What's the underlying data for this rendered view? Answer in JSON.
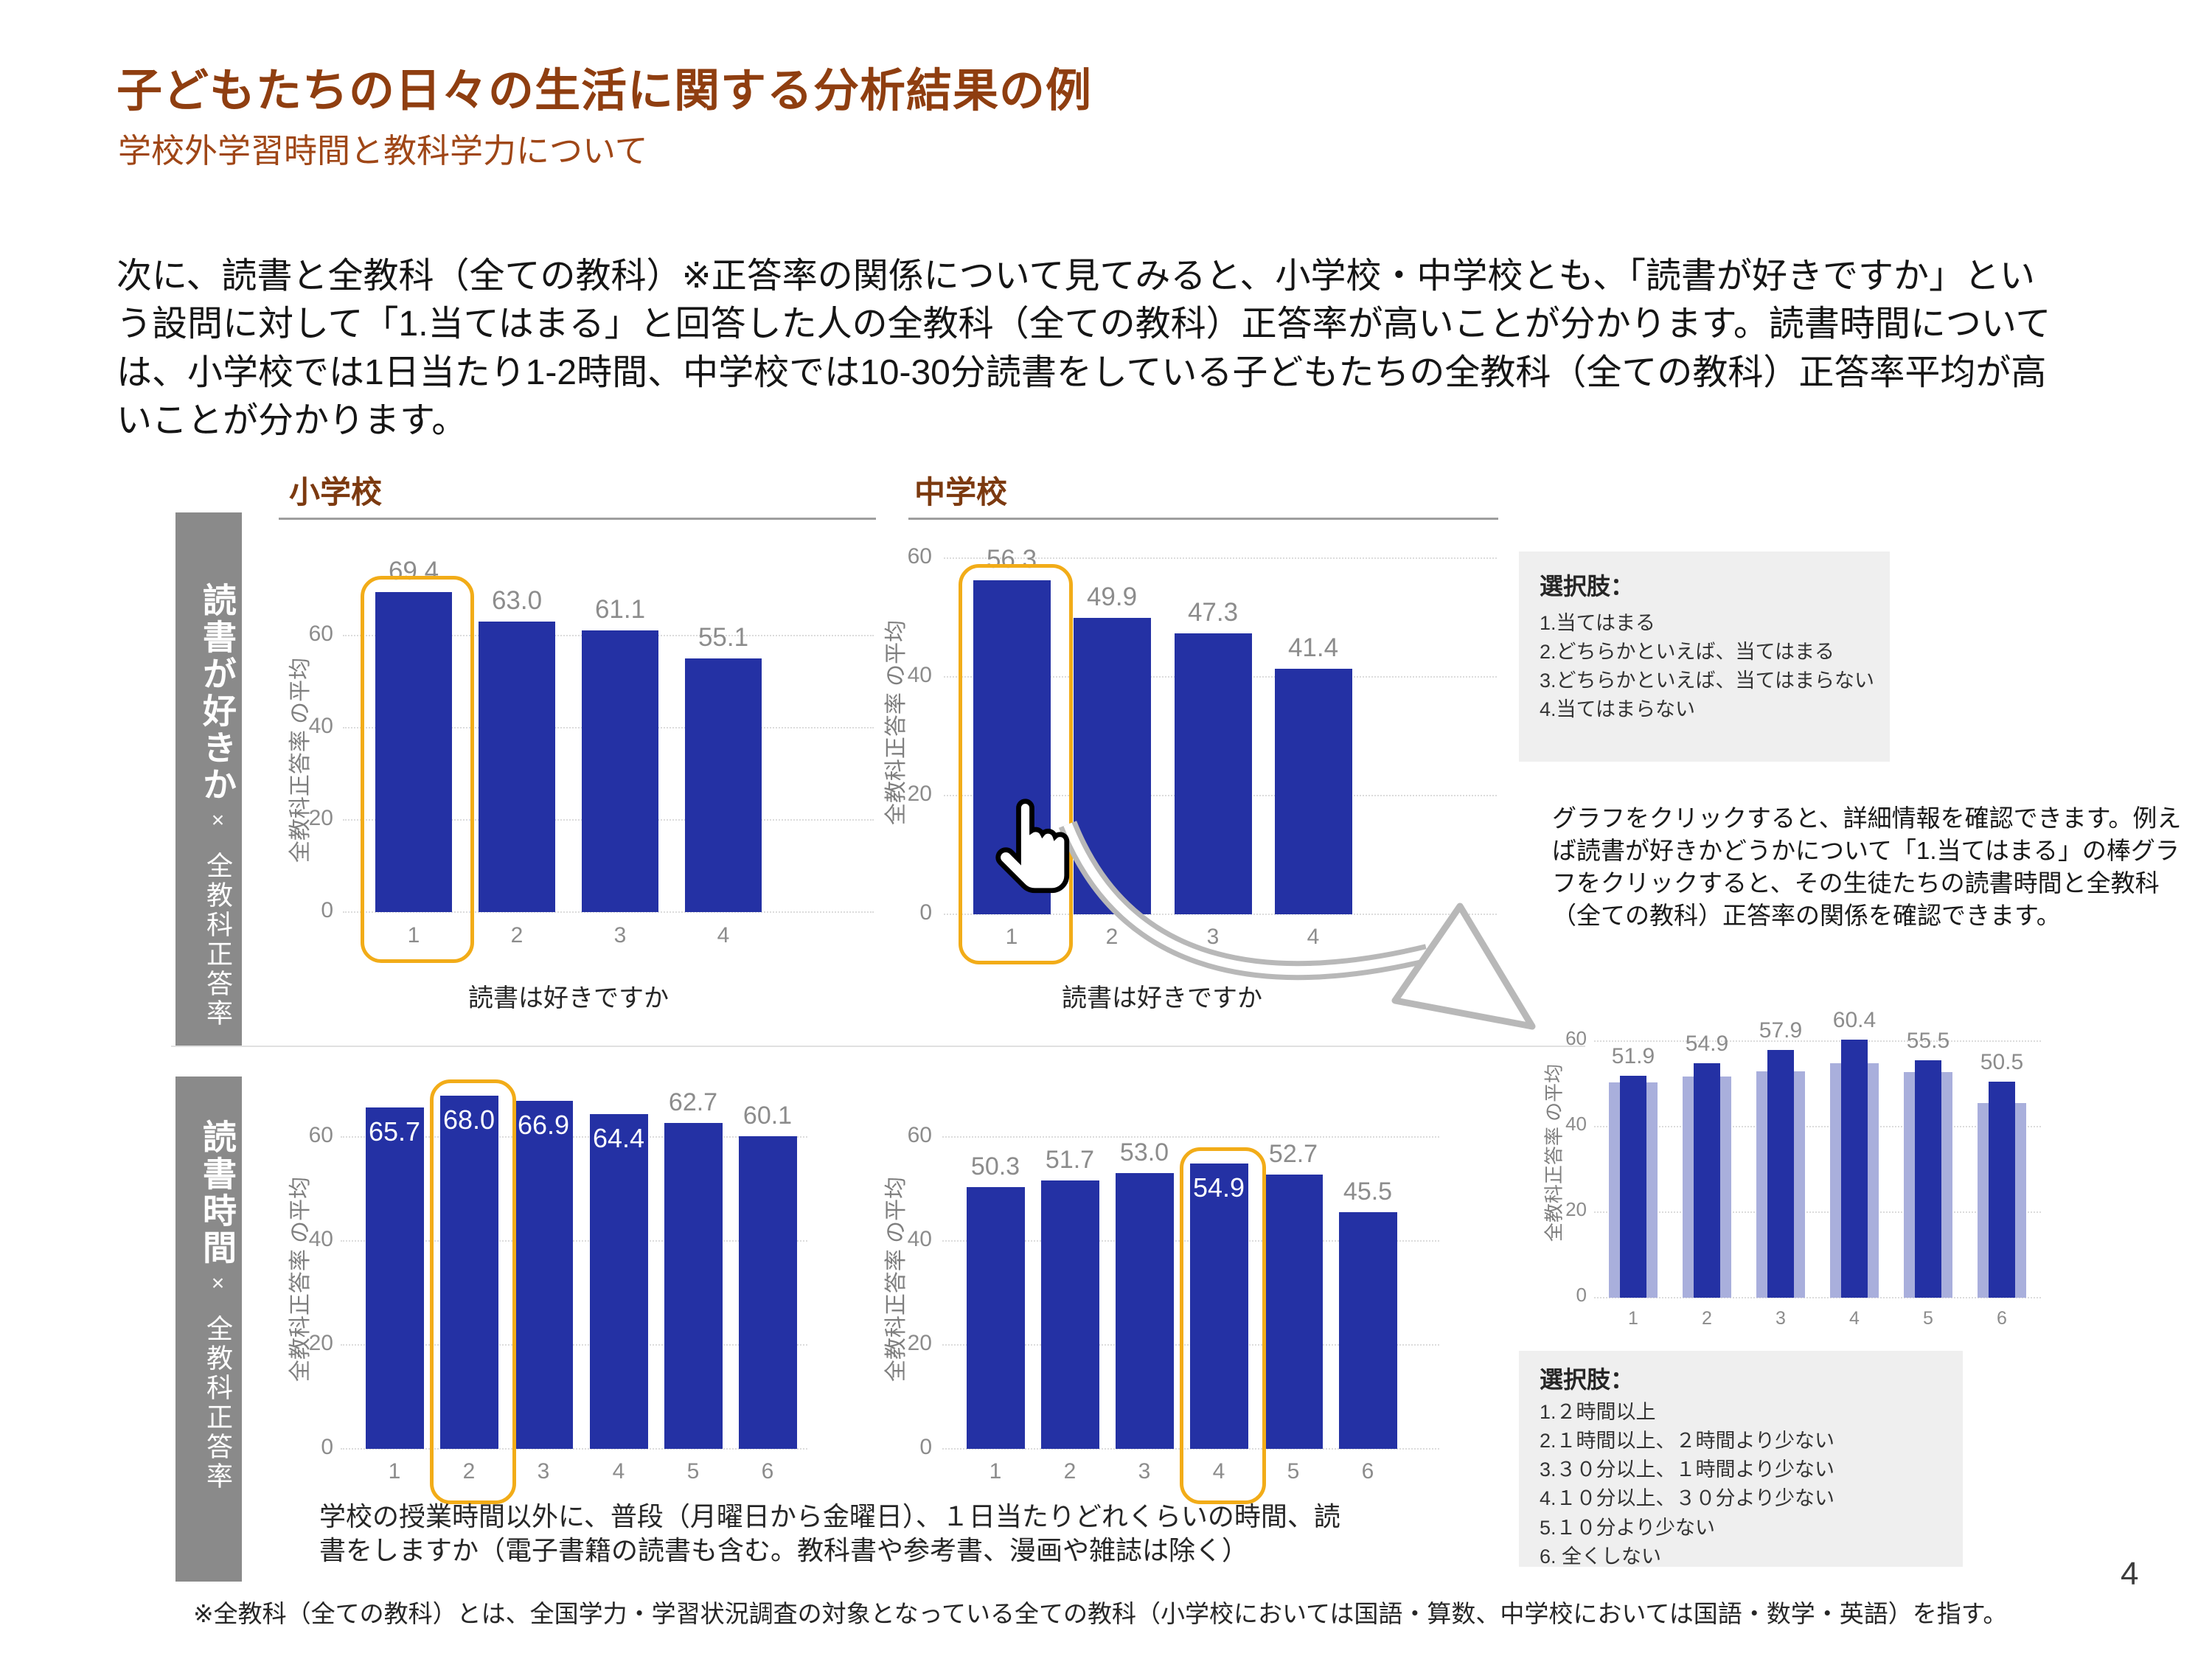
{
  "page": {
    "title": "子どもたちの日々の生活に関する分析結果の例",
    "subtitle": "学校外学習時間と教科学力について",
    "body": "次に、読書と全教科（全ての教科）※正答率の関係について見てみると、小学校・中学校とも、「読書が好きですか」という設問に対して「1.当てはまる」と回答した人の全教科（全ての教科）正答率が高いことが分かります。読書時間については、小学校では1日当たり1-2時間、中学校では10-30分読書をしている子どもたちの全教科（全ての教科）正答率平均が高いことが分かります。",
    "footnote": "※全教科（全ての教科）とは、全国学力・学習状況調査の対象となっている全ての教科（小学校においては国語・算数、中学校においては国語・数学・英語）を指す。",
    "page_number": "4"
  },
  "colors": {
    "bar": "#2431A4",
    "bar_light": "#A9AFDC",
    "highlight": "#F2AC18",
    "sidebar": "#8A8A8A",
    "heading": "#8F3E10",
    "heading2": "#9F4616",
    "column_header": "#7C3A10",
    "box_bg": "#EFEFEF",
    "label_gray": "#8C8C8C"
  },
  "column_headers": [
    "小学校",
    "中学校"
  ],
  "row_labels": [
    {
      "title": "読書が好きか",
      "cross": "×",
      "sub": "全教科正答率"
    },
    {
      "title": "読書時間",
      "cross": "×",
      "sub": "全教科正答率"
    }
  ],
  "chart_data": [
    {
      "id": "elementary-like",
      "type": "bar",
      "school": "小学校",
      "categories": [
        "1",
        "2",
        "3",
        "4"
      ],
      "values": [
        69.4,
        63.0,
        61.1,
        55.1
      ],
      "value_labels": [
        "69.4",
        "63.0",
        "61.1",
        "55.1"
      ],
      "label_inside": [
        false,
        false,
        false,
        false
      ],
      "highlight_index": 0,
      "ylabel": "全教科正答率 の平均",
      "yticks": [
        0,
        20,
        40,
        60
      ],
      "ylim": [
        0,
        70.5
      ],
      "xlabel": "読書は好きですか",
      "grid": "dotted",
      "legend": "none"
    },
    {
      "id": "junior-like",
      "type": "bar",
      "school": "中学校",
      "categories": [
        "1",
        "2",
        "3",
        "4"
      ],
      "values": [
        56.3,
        49.9,
        47.3,
        41.4
      ],
      "value_labels": [
        "56.3",
        "49.9",
        "47.3",
        "41.4"
      ],
      "label_inside": [
        false,
        false,
        false,
        false
      ],
      "highlight_index": 0,
      "ylabel": "全教科正答率 の平均",
      "yticks": [
        0,
        20,
        40,
        60
      ],
      "ylim": [
        0,
        61
      ],
      "xlabel": "読書は好きですか",
      "grid": "dotted",
      "legend": "none"
    },
    {
      "id": "elementary-time",
      "type": "bar",
      "school": "小学校",
      "categories": [
        "1",
        "2",
        "3",
        "4",
        "5",
        "6"
      ],
      "values": [
        65.7,
        68.0,
        66.9,
        64.4,
        62.7,
        60.1
      ],
      "value_labels": [
        "65.7",
        "68.0",
        "66.9",
        "64.4",
        "62.7",
        "60.1"
      ],
      "label_inside": [
        true,
        true,
        true,
        true,
        false,
        false
      ],
      "highlight_index": 1,
      "ylabel": "全教科正答率 の平均",
      "yticks": [
        0,
        20,
        40,
        60
      ],
      "ylim": [
        0,
        70.5
      ],
      "xlabel": "学校の授業時間以外に、普段（月曜日から金曜日）、１日当たりどれくらいの時間、読書をしますか（電子書籍の読書も含む。教科書や参考書、漫画や雑誌は除く）",
      "grid": "dotted",
      "legend": "none"
    },
    {
      "id": "junior-time",
      "type": "bar",
      "school": "中学校",
      "categories": [
        "1",
        "2",
        "3",
        "4",
        "5",
        "6"
      ],
      "values": [
        50.3,
        51.7,
        53.0,
        54.9,
        52.7,
        45.5
      ],
      "value_labels": [
        "50.3",
        "51.7",
        "53.0",
        "54.9",
        "52.7",
        "45.5"
      ],
      "label_inside": [
        false,
        false,
        false,
        true,
        false,
        false
      ],
      "highlight_index": 3,
      "ylabel": "全教科正答率 の平均",
      "yticks": [
        0,
        20,
        40,
        60
      ],
      "ylim": [
        0,
        70.5
      ],
      "xlabel": "学校の授業時間以外に、普段（月曜日から金曜日）、１日当たりどれくらいの時間、読書をしますか（電子書籍の読書も含む。教科書や参考書、漫画や雑誌は除く）",
      "grid": "dotted",
      "legend": "none"
    },
    {
      "id": "junior-detail",
      "type": "bar",
      "school": "中学校",
      "categories": [
        "1",
        "2",
        "3",
        "4",
        "5",
        "6"
      ],
      "series": [
        {
          "role": "background-overall",
          "values": [
            50.3,
            51.7,
            53.0,
            54.9,
            52.7,
            45.5
          ]
        },
        {
          "role": "highlight-selected",
          "values": [
            51.9,
            54.9,
            57.9,
            60.4,
            55.5,
            50.5
          ],
          "value_labels": [
            "51.9",
            "54.9",
            "57.9",
            "60.4",
            "55.5",
            "50.5"
          ]
        }
      ],
      "ylabel": "全教科正答率 の平均",
      "yticks": [
        0,
        20,
        40,
        60
      ],
      "ylim": [
        0,
        62
      ],
      "grid": "dotted",
      "legend": "none"
    }
  ],
  "options_boxes": [
    {
      "heading": "選択肢：",
      "items": [
        "1.当てはまる",
        "2.どちらかといえば、当てはまる",
        "3.どちらかといえば、当てはまらない",
        "4.当てはまらない"
      ]
    },
    {
      "heading": "選択肢：",
      "items": [
        "1.２時間以上",
        "2.１時間以上、２時間より少ない",
        "3.３０分以上、１時間より少ない",
        "4.１０分以上、３０分より少ない",
        "5.１０分より少ない",
        "6. 全くしない"
      ]
    }
  ],
  "explanation": "グラフをクリックすると、詳細情報を確認できます。例えば読書が好きかどうかについて「1.当てはまる」の棒グラフをクリックすると、その生徒たちの読書時間と全教科（全ての教科）正答率の関係を確認できます。"
}
